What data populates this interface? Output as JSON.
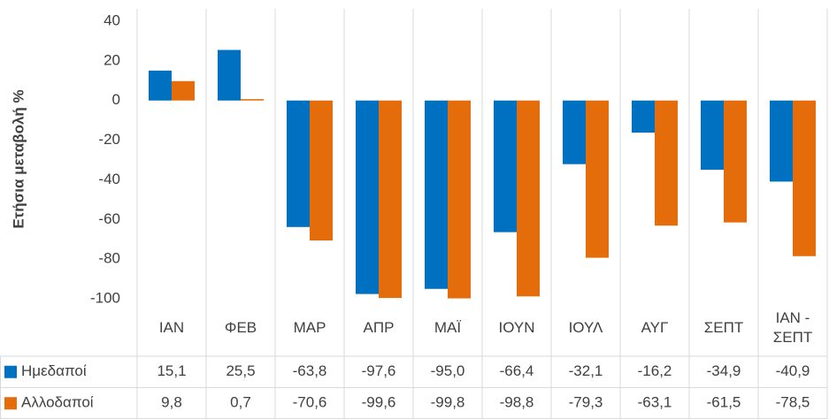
{
  "chart_data": {
    "type": "bar",
    "y_label": "Ετήσια μεταβολή %",
    "categories": [
      "ΙΑΝ",
      "ΦΕΒ",
      "ΜΑΡ",
      "ΑΠΡ",
      "ΜΑΪ",
      "ΙΟΥΝ",
      "ΙΟΥΛ",
      "ΑΥΓ",
      "ΣΕΠΤ",
      "ΙΑΝ - ΣΕΠΤ"
    ],
    "series": [
      {
        "name": "Ημεδαποί",
        "color": "#0070c0",
        "values": [
          15.1,
          25.5,
          -63.8,
          -97.6,
          -95.0,
          -66.4,
          -32.1,
          -16.2,
          -34.9,
          -40.9
        ],
        "value_labels": [
          "15,1",
          "25,5",
          "-63,8",
          "-97,6",
          "-95,0",
          "-66,4",
          "-32,1",
          "-16,2",
          "-34,9",
          "-40,9"
        ]
      },
      {
        "name": "Αλλοδαποί",
        "color": "#e46c0a",
        "values": [
          9.8,
          0.7,
          -70.6,
          -99.6,
          -99.8,
          -98.8,
          -79.3,
          -63.1,
          -61.5,
          -78.5
        ],
        "value_labels": [
          "9,8",
          "0,7",
          "-70,6",
          "-99,6",
          "-99,8",
          "-98,8",
          "-79,3",
          "-63,1",
          "-61,5",
          "-78,5"
        ]
      }
    ],
    "ylim": [
      -100,
      40
    ],
    "yticks": [
      40,
      20,
      0,
      -20,
      -40,
      -60,
      -80,
      -100
    ],
    "data_table": true
  }
}
